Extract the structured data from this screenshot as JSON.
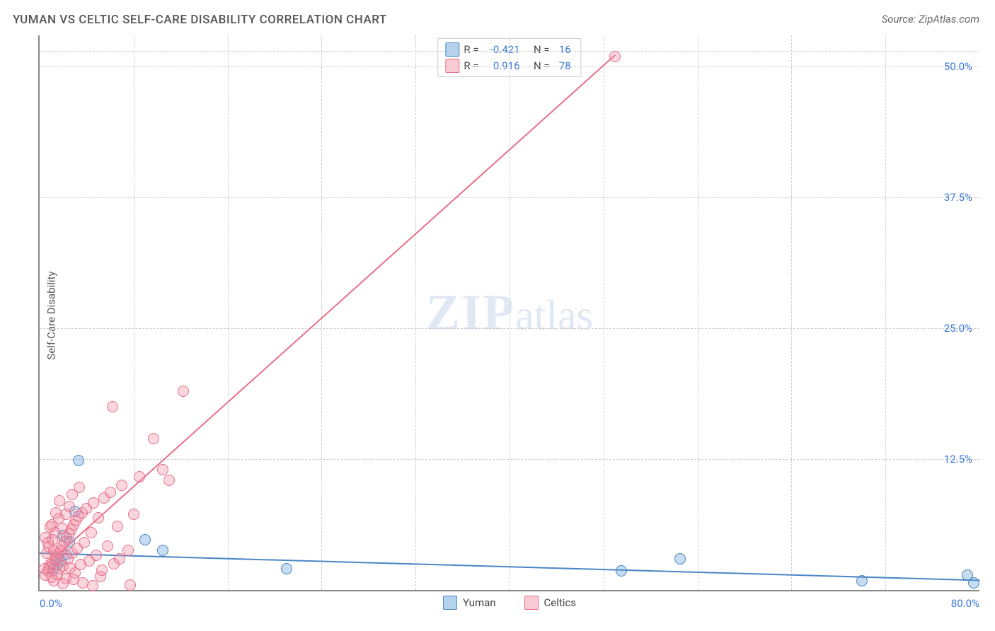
{
  "title": "YUMAN VS CELTIC SELF-CARE DISABILITY CORRELATION CHART",
  "source": "Source: ZipAtlas.com",
  "ylabel": "Self-Care Disability",
  "watermark_bold": "ZIP",
  "watermark_light": "atlas",
  "chart": {
    "type": "scatter",
    "background_color": "#ffffff",
    "grid_color": "#cccccc",
    "axis_color": "#888888",
    "axis_width": 2,
    "tick_color": "#3b78d8",
    "tick_fontsize": 15,
    "title_fontsize": 17,
    "title_color": "#555555",
    "label_fontsize": 15,
    "label_color": "#555555",
    "xlim": [
      0,
      80
    ],
    "ylim": [
      0,
      53
    ],
    "yticks": [
      {
        "v": 12.5,
        "label": "12.5%"
      },
      {
        "v": 25.0,
        "label": "25.0%"
      },
      {
        "v": 37.5,
        "label": "37.5%"
      },
      {
        "v": 50.0,
        "label": "50.0%"
      }
    ],
    "xticks_minor": [
      8,
      16,
      24,
      32,
      40,
      48,
      56,
      64,
      72
    ],
    "xtick_left": "0.0%",
    "xtick_right": "80.0%",
    "marker_radius": 8,
    "marker_fill_opacity": 0.35,
    "series": [
      {
        "key": "yuman",
        "name": "Yuman",
        "color": "#5b9bd5",
        "border_color": "#4a86c5",
        "R_label": "R =",
        "N_label": "N =",
        "R": "-0.421",
        "N": "16",
        "trend": {
          "x1": 0,
          "y1": 3.6,
          "x2": 80,
          "y2": 1.0,
          "width": 2
        },
        "points": [
          {
            "x": 1.2,
            "y": 2.0
          },
          {
            "x": 1.5,
            "y": 2.4
          },
          {
            "x": 1.8,
            "y": 2.8
          },
          {
            "x": 2.2,
            "y": 3.4
          },
          {
            "x": 2.5,
            "y": 4.6
          },
          {
            "x": 3.0,
            "y": 7.5
          },
          {
            "x": 3.3,
            "y": 12.4
          },
          {
            "x": 9.0,
            "y": 4.8
          },
          {
            "x": 10.5,
            "y": 3.8
          },
          {
            "x": 21.0,
            "y": 2.0
          },
          {
            "x": 49.5,
            "y": 1.8
          },
          {
            "x": 54.5,
            "y": 3.0
          },
          {
            "x": 70.0,
            "y": 0.9
          },
          {
            "x": 79.0,
            "y": 1.4
          },
          {
            "x": 79.5,
            "y": 0.7
          },
          {
            "x": 2.0,
            "y": 5.2
          }
        ]
      },
      {
        "key": "celtics",
        "name": "Celtics",
        "color": "#f28ca0",
        "border_color": "#e76f8a",
        "R_label": "R =",
        "N_label": "N =",
        "R": " 0.916",
        "N": "78",
        "trend": {
          "x1": 0.6,
          "y1": 2.5,
          "x2": 49.0,
          "y2": 51.2,
          "width": 2
        },
        "points": [
          {
            "x": 0.5,
            "y": 1.4
          },
          {
            "x": 0.7,
            "y": 1.8
          },
          {
            "x": 0.8,
            "y": 2.1
          },
          {
            "x": 0.9,
            "y": 2.4
          },
          {
            "x": 1.0,
            "y": 1.2
          },
          {
            "x": 1.1,
            "y": 2.6
          },
          {
            "x": 1.2,
            "y": 0.9
          },
          {
            "x": 1.3,
            "y": 2.9
          },
          {
            "x": 1.4,
            "y": 3.2
          },
          {
            "x": 1.5,
            "y": 1.5
          },
          {
            "x": 1.6,
            "y": 3.5
          },
          {
            "x": 1.7,
            "y": 2.0
          },
          {
            "x": 1.8,
            "y": 3.8
          },
          {
            "x": 1.9,
            "y": 4.2
          },
          {
            "x": 2.0,
            "y": 2.3
          },
          {
            "x": 2.1,
            "y": 4.6
          },
          {
            "x": 2.2,
            "y": 1.1
          },
          {
            "x": 2.3,
            "y": 5.0
          },
          {
            "x": 2.4,
            "y": 3.0
          },
          {
            "x": 2.5,
            "y": 5.4
          },
          {
            "x": 2.6,
            "y": 2.1
          },
          {
            "x": 2.7,
            "y": 5.8
          },
          {
            "x": 2.8,
            "y": 3.5
          },
          {
            "x": 2.9,
            "y": 6.2
          },
          {
            "x": 3.0,
            "y": 1.6
          },
          {
            "x": 3.1,
            "y": 6.6
          },
          {
            "x": 3.2,
            "y": 4.0
          },
          {
            "x": 3.3,
            "y": 7.0
          },
          {
            "x": 3.5,
            "y": 2.4
          },
          {
            "x": 3.6,
            "y": 7.4
          },
          {
            "x": 3.8,
            "y": 4.5
          },
          {
            "x": 4.0,
            "y": 7.8
          },
          {
            "x": 4.2,
            "y": 2.8
          },
          {
            "x": 4.4,
            "y": 5.5
          },
          {
            "x": 4.6,
            "y": 8.3
          },
          {
            "x": 4.8,
            "y": 3.3
          },
          {
            "x": 5.0,
            "y": 6.9
          },
          {
            "x": 5.2,
            "y": 1.3
          },
          {
            "x": 5.5,
            "y": 8.8
          },
          {
            "x": 5.8,
            "y": 4.2
          },
          {
            "x": 6.0,
            "y": 9.3
          },
          {
            "x": 6.3,
            "y": 2.5
          },
          {
            "x": 6.2,
            "y": 17.5
          },
          {
            "x": 6.6,
            "y": 6.1
          },
          {
            "x": 7.0,
            "y": 10.0
          },
          {
            "x": 7.5,
            "y": 3.8
          },
          {
            "x": 7.7,
            "y": 0.5
          },
          {
            "x": 8.0,
            "y": 7.2
          },
          {
            "x": 8.5,
            "y": 10.8
          },
          {
            "x": 4.5,
            "y": 0.4
          },
          {
            "x": 3.7,
            "y": 0.7
          },
          {
            "x": 9.7,
            "y": 14.5
          },
          {
            "x": 10.5,
            "y": 11.5
          },
          {
            "x": 11.0,
            "y": 10.5
          },
          {
            "x": 12.2,
            "y": 19.0
          },
          {
            "x": 1.0,
            "y": 6.2
          },
          {
            "x": 1.3,
            "y": 5.5
          },
          {
            "x": 1.6,
            "y": 6.8
          },
          {
            "x": 0.6,
            "y": 3.5
          },
          {
            "x": 0.8,
            "y": 4.1
          },
          {
            "x": 2.2,
            "y": 7.2
          },
          {
            "x": 2.5,
            "y": 8.0
          },
          {
            "x": 0.4,
            "y": 2.0
          },
          {
            "x": 1.1,
            "y": 4.8
          },
          {
            "x": 1.4,
            "y": 7.4
          },
          {
            "x": 2.8,
            "y": 9.1
          },
          {
            "x": 0.5,
            "y": 5.0
          },
          {
            "x": 0.9,
            "y": 6.0
          },
          {
            "x": 2.0,
            "y": 0.6
          },
          {
            "x": 3.4,
            "y": 9.8
          },
          {
            "x": 1.7,
            "y": 8.5
          },
          {
            "x": 5.3,
            "y": 1.9
          },
          {
            "x": 6.8,
            "y": 3.0
          },
          {
            "x": 2.9,
            "y": 1.0
          },
          {
            "x": 49.0,
            "y": 51.0
          },
          {
            "x": 1.2,
            "y": 3.7
          },
          {
            "x": 1.9,
            "y": 5.9
          },
          {
            "x": 0.7,
            "y": 4.5
          }
        ]
      }
    ],
    "legend_bottom": [
      {
        "key": "yuman",
        "label": "Yuman"
      },
      {
        "key": "celtics",
        "label": "Celtics"
      }
    ]
  }
}
